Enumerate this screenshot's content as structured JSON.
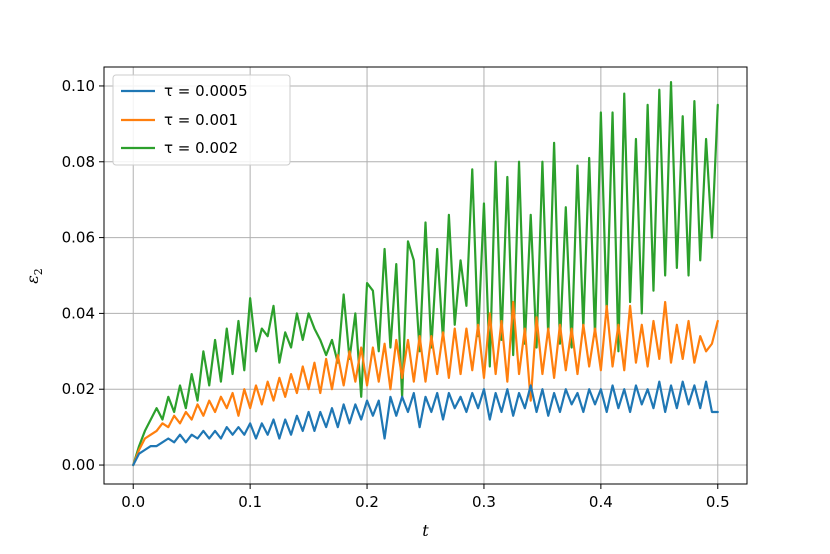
{
  "chart_data": {
    "type": "line",
    "xlabel": "t",
    "ylabel": "ε",
    "ylabel_subscript": "2",
    "xlim": [
      -0.025,
      0.525
    ],
    "ylim": [
      -0.005,
      0.105
    ],
    "xticks": [
      0.0,
      0.1,
      0.2,
      0.3,
      0.4,
      0.5
    ],
    "xtick_labels": [
      "0.0",
      "0.1",
      "0.2",
      "0.3",
      "0.4",
      "0.5"
    ],
    "yticks": [
      0.0,
      0.02,
      0.04,
      0.06,
      0.08,
      0.1
    ],
    "ytick_labels": [
      "0.00",
      "0.02",
      "0.04",
      "0.06",
      "0.08",
      "0.10"
    ],
    "grid": true,
    "legend_position": "top-left",
    "series": [
      {
        "name": "τ = 0.0005",
        "color": "#1f77b4",
        "x": [
          0.0,
          0.005,
          0.01,
          0.015,
          0.02,
          0.025,
          0.03,
          0.035,
          0.04,
          0.045,
          0.05,
          0.055,
          0.06,
          0.065,
          0.07,
          0.075,
          0.08,
          0.085,
          0.09,
          0.095,
          0.1,
          0.105,
          0.11,
          0.115,
          0.12,
          0.125,
          0.13,
          0.135,
          0.14,
          0.145,
          0.15,
          0.155,
          0.16,
          0.165,
          0.17,
          0.175,
          0.18,
          0.185,
          0.19,
          0.195,
          0.2,
          0.205,
          0.21,
          0.215,
          0.22,
          0.225,
          0.23,
          0.235,
          0.24,
          0.245,
          0.25,
          0.255,
          0.26,
          0.265,
          0.27,
          0.275,
          0.28,
          0.285,
          0.29,
          0.295,
          0.3,
          0.305,
          0.31,
          0.315,
          0.32,
          0.325,
          0.33,
          0.335,
          0.34,
          0.345,
          0.35,
          0.355,
          0.36,
          0.365,
          0.37,
          0.375,
          0.38,
          0.385,
          0.39,
          0.395,
          0.4,
          0.405,
          0.41,
          0.415,
          0.42,
          0.425,
          0.43,
          0.435,
          0.44,
          0.445,
          0.45,
          0.455,
          0.46,
          0.465,
          0.47,
          0.475,
          0.48,
          0.485,
          0.49,
          0.495,
          0.5
        ],
        "y": [
          0.0,
          0.003,
          0.004,
          0.005,
          0.005,
          0.006,
          0.007,
          0.006,
          0.008,
          0.006,
          0.008,
          0.007,
          0.009,
          0.007,
          0.009,
          0.007,
          0.01,
          0.008,
          0.01,
          0.008,
          0.011,
          0.007,
          0.011,
          0.008,
          0.012,
          0.007,
          0.012,
          0.008,
          0.013,
          0.009,
          0.014,
          0.009,
          0.014,
          0.01,
          0.015,
          0.01,
          0.016,
          0.011,
          0.016,
          0.012,
          0.017,
          0.013,
          0.017,
          0.007,
          0.018,
          0.013,
          0.018,
          0.014,
          0.019,
          0.01,
          0.018,
          0.014,
          0.019,
          0.012,
          0.019,
          0.015,
          0.018,
          0.014,
          0.019,
          0.015,
          0.02,
          0.012,
          0.019,
          0.014,
          0.02,
          0.013,
          0.019,
          0.015,
          0.021,
          0.014,
          0.02,
          0.013,
          0.019,
          0.014,
          0.02,
          0.016,
          0.019,
          0.014,
          0.02,
          0.016,
          0.02,
          0.014,
          0.021,
          0.015,
          0.02,
          0.014,
          0.021,
          0.016,
          0.02,
          0.015,
          0.022,
          0.014,
          0.021,
          0.015,
          0.022,
          0.016,
          0.021,
          0.015,
          0.022,
          0.014,
          0.014
        ]
      },
      {
        "name": "τ = 0.001",
        "color": "#ff7f0e",
        "x": [
          0.0,
          0.005,
          0.01,
          0.015,
          0.02,
          0.025,
          0.03,
          0.035,
          0.04,
          0.045,
          0.05,
          0.055,
          0.06,
          0.065,
          0.07,
          0.075,
          0.08,
          0.085,
          0.09,
          0.095,
          0.1,
          0.105,
          0.11,
          0.115,
          0.12,
          0.125,
          0.13,
          0.135,
          0.14,
          0.145,
          0.15,
          0.155,
          0.16,
          0.165,
          0.17,
          0.175,
          0.18,
          0.185,
          0.19,
          0.195,
          0.2,
          0.205,
          0.21,
          0.215,
          0.22,
          0.225,
          0.23,
          0.235,
          0.24,
          0.245,
          0.25,
          0.255,
          0.26,
          0.265,
          0.27,
          0.275,
          0.28,
          0.285,
          0.29,
          0.295,
          0.3,
          0.305,
          0.31,
          0.315,
          0.32,
          0.325,
          0.33,
          0.335,
          0.34,
          0.345,
          0.35,
          0.355,
          0.36,
          0.365,
          0.37,
          0.375,
          0.38,
          0.385,
          0.39,
          0.395,
          0.4,
          0.405,
          0.41,
          0.415,
          0.42,
          0.425,
          0.43,
          0.435,
          0.44,
          0.445,
          0.45,
          0.455,
          0.46,
          0.465,
          0.47,
          0.475,
          0.48,
          0.485,
          0.49,
          0.495,
          0.5
        ],
        "y": [
          0.0,
          0.004,
          0.007,
          0.008,
          0.009,
          0.011,
          0.01,
          0.013,
          0.011,
          0.014,
          0.012,
          0.016,
          0.013,
          0.017,
          0.014,
          0.018,
          0.015,
          0.019,
          0.013,
          0.02,
          0.015,
          0.021,
          0.016,
          0.022,
          0.017,
          0.023,
          0.018,
          0.024,
          0.019,
          0.026,
          0.02,
          0.027,
          0.019,
          0.028,
          0.02,
          0.029,
          0.021,
          0.03,
          0.022,
          0.031,
          0.021,
          0.031,
          0.022,
          0.032,
          0.02,
          0.033,
          0.023,
          0.033,
          0.022,
          0.034,
          0.022,
          0.034,
          0.024,
          0.035,
          0.023,
          0.036,
          0.024,
          0.036,
          0.025,
          0.037,
          0.023,
          0.04,
          0.024,
          0.038,
          0.022,
          0.043,
          0.024,
          0.036,
          0.017,
          0.039,
          0.024,
          0.036,
          0.023,
          0.037,
          0.025,
          0.036,
          0.024,
          0.037,
          0.026,
          0.036,
          0.025,
          0.042,
          0.026,
          0.037,
          0.025,
          0.042,
          0.027,
          0.037,
          0.026,
          0.038,
          0.028,
          0.043,
          0.027,
          0.037,
          0.028,
          0.038,
          0.027,
          0.034,
          0.03,
          0.032,
          0.038
        ]
      },
      {
        "name": "τ = 0.002",
        "color": "#2ca02c",
        "x": [
          0.0,
          0.005,
          0.01,
          0.015,
          0.02,
          0.025,
          0.03,
          0.035,
          0.04,
          0.045,
          0.05,
          0.055,
          0.06,
          0.065,
          0.07,
          0.075,
          0.08,
          0.085,
          0.09,
          0.095,
          0.1,
          0.105,
          0.11,
          0.115,
          0.12,
          0.125,
          0.13,
          0.135,
          0.14,
          0.145,
          0.15,
          0.155,
          0.16,
          0.165,
          0.17,
          0.175,
          0.18,
          0.185,
          0.19,
          0.195,
          0.2,
          0.205,
          0.21,
          0.215,
          0.22,
          0.225,
          0.23,
          0.235,
          0.24,
          0.245,
          0.25,
          0.255,
          0.26,
          0.265,
          0.27,
          0.275,
          0.28,
          0.285,
          0.29,
          0.295,
          0.3,
          0.305,
          0.31,
          0.315,
          0.32,
          0.325,
          0.33,
          0.335,
          0.34,
          0.345,
          0.35,
          0.355,
          0.36,
          0.365,
          0.37,
          0.375,
          0.38,
          0.385,
          0.39,
          0.395,
          0.4,
          0.405,
          0.41,
          0.415,
          0.42,
          0.425,
          0.43,
          0.435,
          0.44,
          0.445,
          0.45,
          0.455,
          0.46,
          0.465,
          0.47,
          0.475,
          0.48,
          0.485,
          0.49,
          0.495,
          0.5
        ],
        "y": [
          0.0,
          0.005,
          0.009,
          0.012,
          0.015,
          0.012,
          0.018,
          0.014,
          0.021,
          0.015,
          0.024,
          0.017,
          0.03,
          0.021,
          0.033,
          0.022,
          0.036,
          0.024,
          0.038,
          0.025,
          0.044,
          0.03,
          0.036,
          0.034,
          0.042,
          0.027,
          0.035,
          0.031,
          0.04,
          0.033,
          0.04,
          0.036,
          0.033,
          0.029,
          0.033,
          0.027,
          0.045,
          0.028,
          0.04,
          0.018,
          0.048,
          0.046,
          0.03,
          0.057,
          0.031,
          0.053,
          0.018,
          0.059,
          0.054,
          0.03,
          0.064,
          0.031,
          0.057,
          0.033,
          0.066,
          0.037,
          0.054,
          0.042,
          0.078,
          0.034,
          0.069,
          0.026,
          0.08,
          0.033,
          0.076,
          0.029,
          0.08,
          0.032,
          0.066,
          0.031,
          0.08,
          0.034,
          0.085,
          0.032,
          0.068,
          0.031,
          0.079,
          0.036,
          0.081,
          0.034,
          0.093,
          0.04,
          0.093,
          0.03,
          0.098,
          0.043,
          0.086,
          0.04,
          0.095,
          0.046,
          0.099,
          0.05,
          0.101,
          0.052,
          0.092,
          0.05,
          0.096,
          0.054,
          0.086,
          0.06,
          0.095
        ]
      }
    ]
  }
}
